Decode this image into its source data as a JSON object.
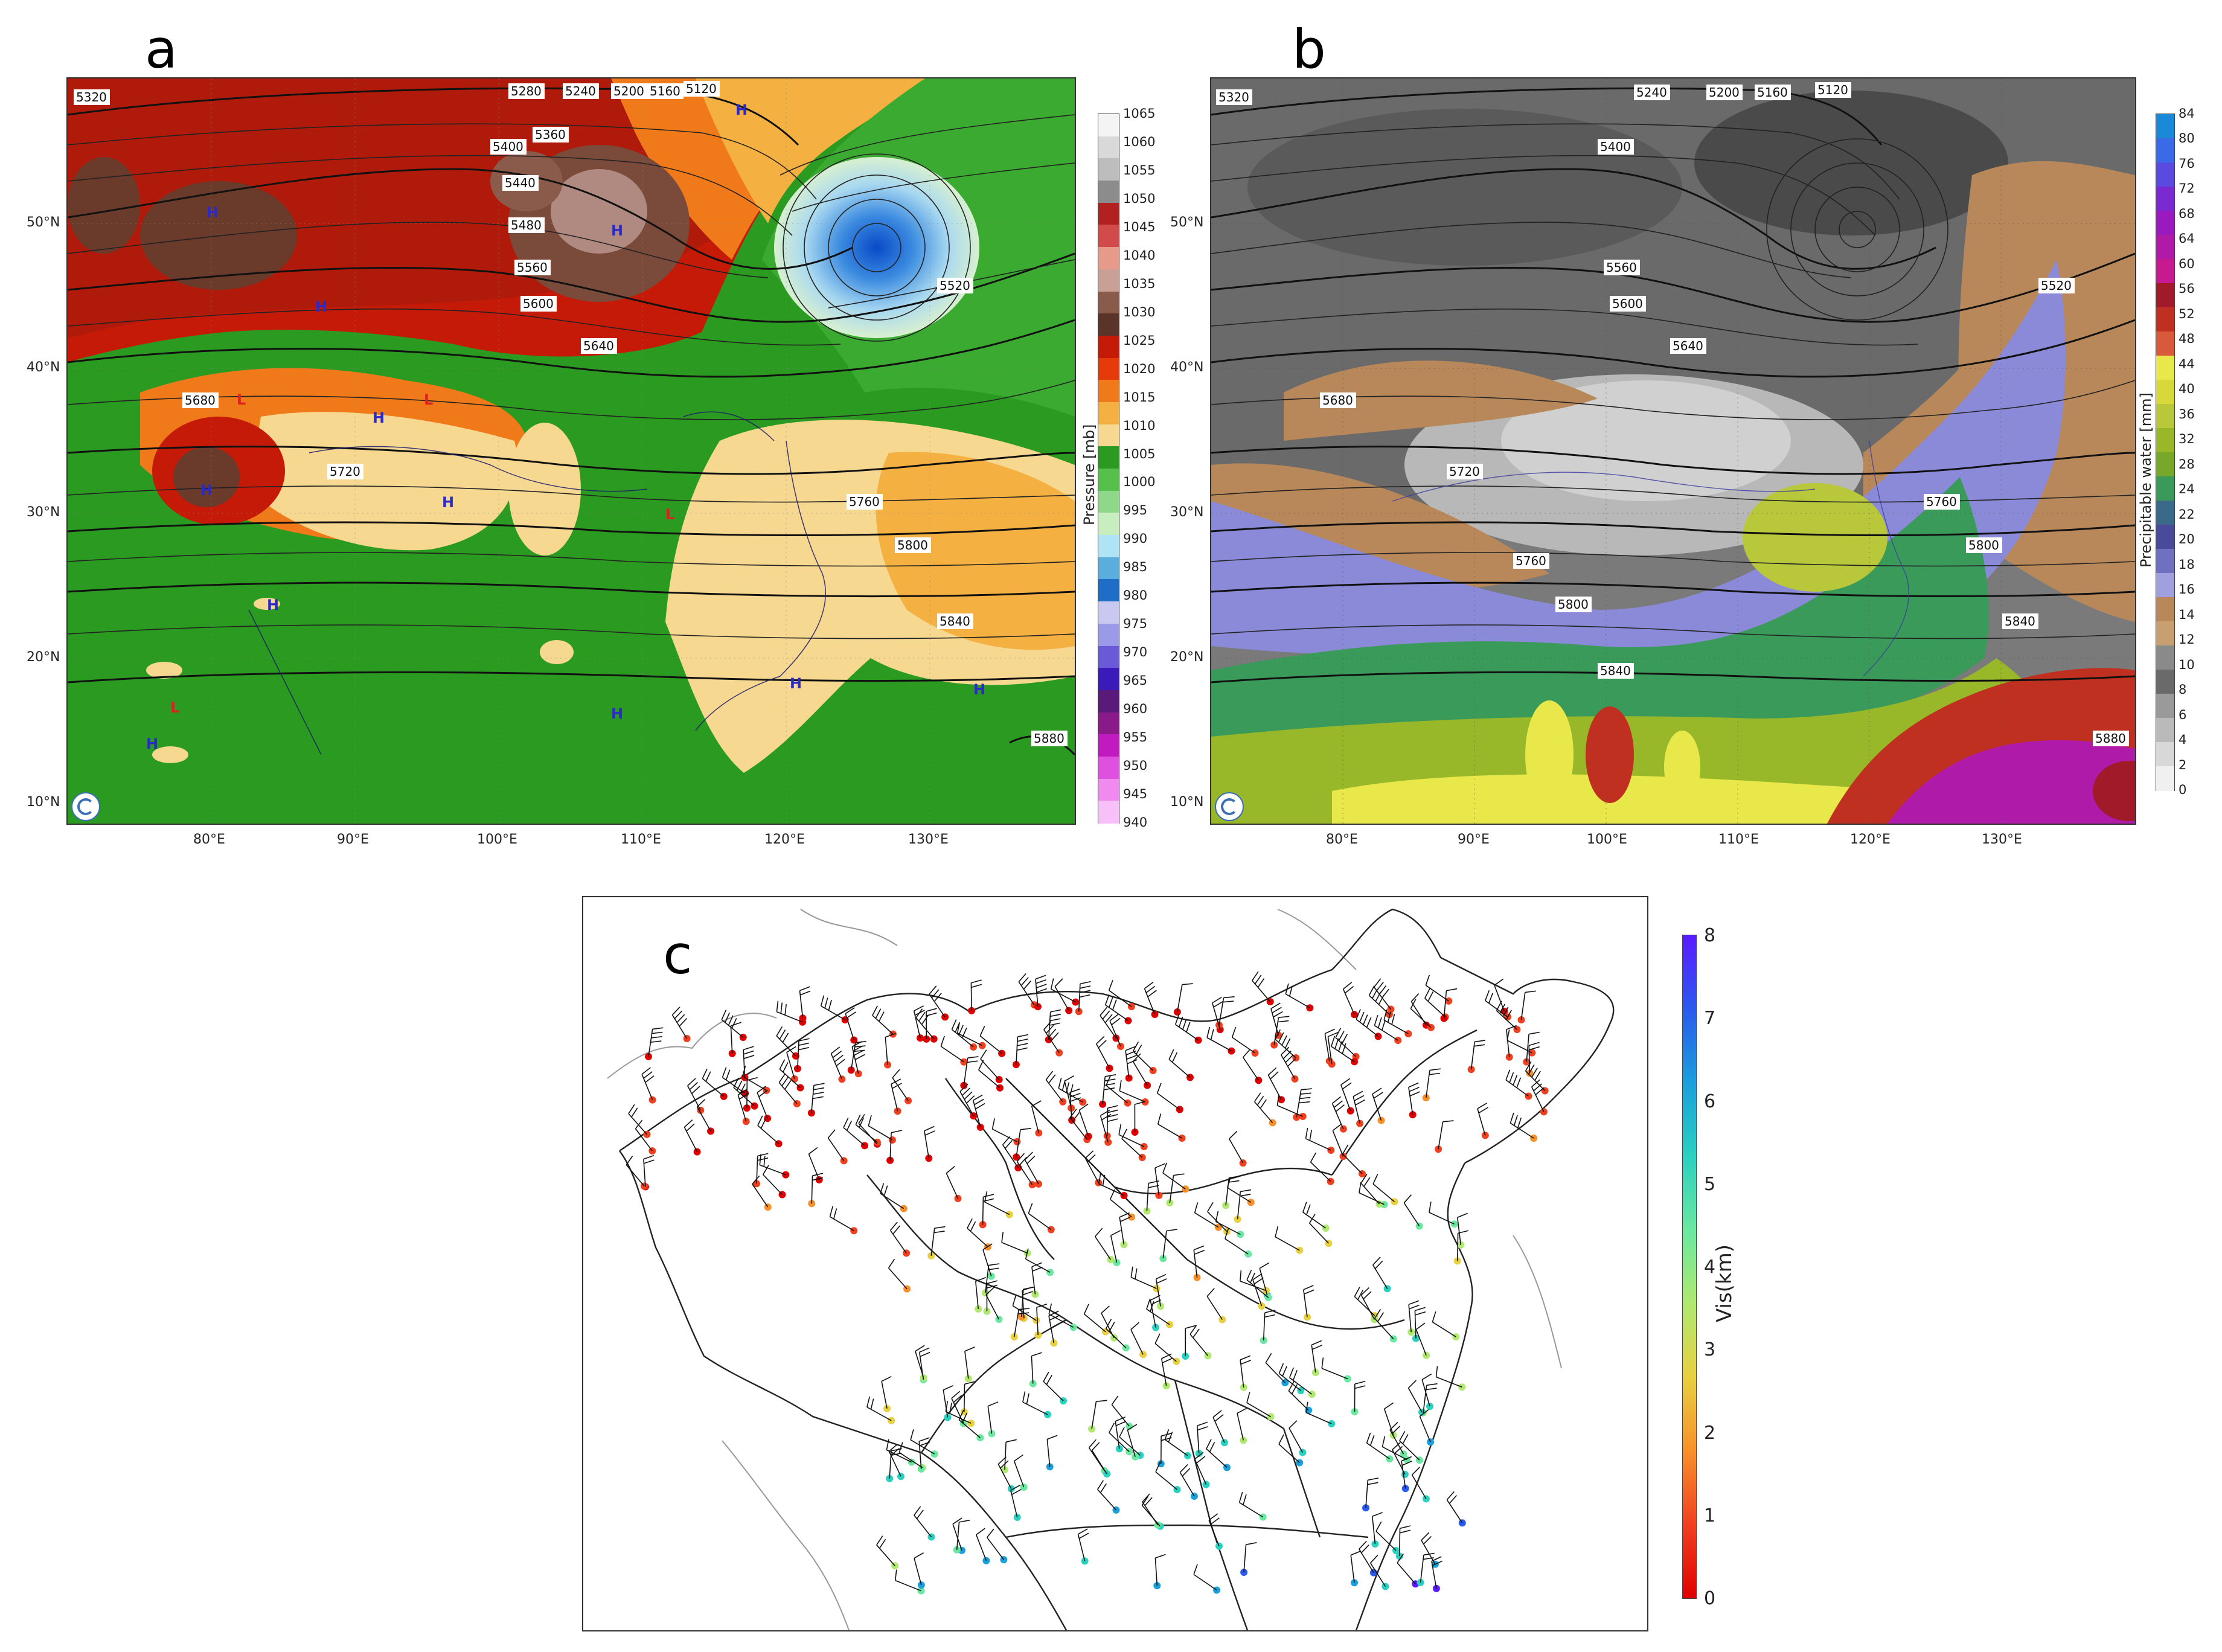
{
  "panels": {
    "a": {
      "letter": "a",
      "lat_labels": [
        "50°N",
        "40°N",
        "30°N",
        "20°N",
        "10°N"
      ],
      "lon_labels": [
        "80°E",
        "90°E",
        "100°E",
        "110°E",
        "120°E",
        "130°E"
      ],
      "contour_labels": [
        "5320",
        "5280",
        "5240",
        "5200",
        "5160",
        "5120",
        "5400",
        "5360",
        "5440",
        "5480",
        "5520",
        "5560",
        "5600",
        "5640",
        "5680",
        "5720",
        "5760",
        "5800",
        "5840",
        "5880"
      ],
      "colorbar": {
        "title": "Pressure [mb]",
        "ticks": [
          "1065",
          "1060",
          "1055",
          "1050",
          "1045",
          "1040",
          "1035",
          "1030",
          "1025",
          "1020",
          "1015",
          "1010",
          "1005",
          "1000",
          "995",
          "990",
          "985",
          "980",
          "975",
          "970",
          "965",
          "960",
          "955",
          "950",
          "945",
          "940"
        ],
        "colors": [
          "#f4f4f4",
          "#d9d9d9",
          "#bdbdbd",
          "#8c8c8c",
          "#b32020",
          "#d24a4a",
          "#e89a8a",
          "#c9a096",
          "#8a5a4a",
          "#5a3428",
          "#c61a08",
          "#e63a0a",
          "#f07a1a",
          "#f4b040",
          "#f7d890",
          "#2a9a20",
          "#55c04a",
          "#8fd88a",
          "#c8eec0",
          "#aee4f4",
          "#5aaede",
          "#1e6ec8",
          "#c8c8f0",
          "#9a9ae8",
          "#6a5ad8",
          "#3a1ab8",
          "#5a1a7a",
          "#8a1a8a",
          "#c01ac0",
          "#e050e0",
          "#f08af0",
          "#f8c0f8"
        ]
      },
      "hl_markers": [
        "H",
        "L"
      ]
    },
    "b": {
      "letter": "b",
      "lat_labels": [
        "50°N",
        "40°N",
        "30°N",
        "20°N",
        "10°N"
      ],
      "lon_labels": [
        "80°E",
        "90°E",
        "100°E",
        "110°E",
        "120°E",
        "130°E"
      ],
      "colorbar": {
        "title": "Precipitable water [mm]",
        "ticks": [
          "84",
          "80",
          "76",
          "72",
          "68",
          "64",
          "60",
          "56",
          "52",
          "48",
          "44",
          "40",
          "36",
          "32",
          "28",
          "24",
          "22",
          "20",
          "18",
          "16",
          "14",
          "12",
          "10",
          "8",
          "6",
          "4",
          "2",
          "0"
        ],
        "colors": [
          "#1a8ad8",
          "#3a6ae8",
          "#5a4ae0",
          "#7a2ad0",
          "#9a1ac0",
          "#b01aa8",
          "#c81a90",
          "#a01a2a",
          "#c03020",
          "#d85a3a",
          "#e8e84a",
          "#d8d83a",
          "#b8c83a",
          "#98b82a",
          "#78a82a",
          "#3a9a5a",
          "#3a6a8a",
          "#4a4a9a",
          "#7070c0",
          "#a0a0e0",
          "#b8885a",
          "#c8a070",
          "#8a8a8a",
          "#6a6a6a",
          "#9a9a9a",
          "#bababa",
          "#d8d8d8",
          "#f0f0f0"
        ]
      }
    },
    "c": {
      "letter": "c",
      "colorbar": {
        "title": "Vis(km)",
        "ticks": [
          "8",
          "7",
          "6",
          "5",
          "4",
          "3",
          "2",
          "1",
          "0"
        ],
        "colors": [
          "#5a1aff",
          "#2a5aee",
          "#1aa0dc",
          "#2ad0c0",
          "#6ae8a0",
          "#b0e870",
          "#e8d040",
          "#f8902a",
          "#f04020",
          "#e00000"
        ]
      }
    }
  }
}
